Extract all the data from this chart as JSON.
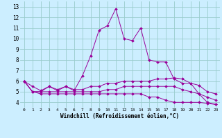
{
  "xlabel": "Windchill (Refroidissement éolien,°C)",
  "x_ticks": [
    0,
    1,
    2,
    3,
    4,
    5,
    6,
    7,
    8,
    9,
    10,
    11,
    12,
    13,
    14,
    15,
    16,
    17,
    18,
    19,
    20,
    21,
    22,
    23
  ],
  "y_ticks": [
    4,
    5,
    6,
    7,
    8,
    9,
    10,
    11,
    12,
    13
  ],
  "xlim": [
    -0.5,
    23.5
  ],
  "ylim": [
    3.5,
    13.5
  ],
  "bg_color": "#cceeff",
  "grid_color": "#99cccc",
  "line_color": "#990099",
  "lines": [
    {
      "x": [
        0,
        1,
        2,
        3,
        4,
        5,
        6,
        7,
        8,
        9,
        10,
        11,
        12,
        13,
        14,
        15,
        16,
        17,
        18,
        19,
        20,
        21,
        22,
        23
      ],
      "y": [
        6.0,
        5.5,
        5.1,
        5.5,
        5.1,
        5.5,
        5.1,
        6.5,
        8.4,
        10.8,
        11.2,
        12.8,
        10.0,
        9.8,
        11.0,
        8.0,
        7.8,
        7.8,
        6.2,
        5.8,
        5.8,
        4.8,
        4.0,
        3.8
      ]
    },
    {
      "x": [
        0,
        1,
        2,
        3,
        4,
        5,
        6,
        7,
        8,
        9,
        10,
        11,
        12,
        13,
        14,
        15,
        16,
        17,
        18,
        19,
        20,
        21,
        22,
        23
      ],
      "y": [
        6.0,
        5.0,
        5.0,
        5.5,
        5.2,
        5.5,
        5.2,
        5.2,
        5.5,
        5.5,
        5.8,
        5.8,
        6.0,
        6.0,
        6.0,
        6.0,
        6.2,
        6.2,
        6.3,
        6.2,
        5.8,
        5.6,
        5.0,
        4.8
      ]
    },
    {
      "x": [
        0,
        1,
        2,
        3,
        4,
        5,
        6,
        7,
        8,
        9,
        10,
        11,
        12,
        13,
        14,
        15,
        16,
        17,
        18,
        19,
        20,
        21,
        22,
        23
      ],
      "y": [
        6.0,
        5.0,
        5.0,
        5.0,
        5.0,
        5.0,
        5.0,
        5.0,
        5.0,
        5.0,
        5.2,
        5.2,
        5.5,
        5.5,
        5.5,
        5.5,
        5.5,
        5.5,
        5.5,
        5.2,
        5.0,
        4.8,
        4.5,
        4.2
      ]
    },
    {
      "x": [
        0,
        1,
        2,
        3,
        4,
        5,
        6,
        7,
        8,
        9,
        10,
        11,
        12,
        13,
        14,
        15,
        16,
        17,
        18,
        19,
        20,
        21,
        22,
        23
      ],
      "y": [
        6.0,
        5.0,
        4.8,
        4.8,
        4.8,
        4.8,
        4.8,
        4.8,
        4.8,
        4.8,
        4.8,
        4.8,
        4.8,
        4.8,
        4.8,
        4.5,
        4.5,
        4.2,
        4.0,
        4.0,
        4.0,
        4.0,
        3.9,
        3.8
      ]
    }
  ]
}
